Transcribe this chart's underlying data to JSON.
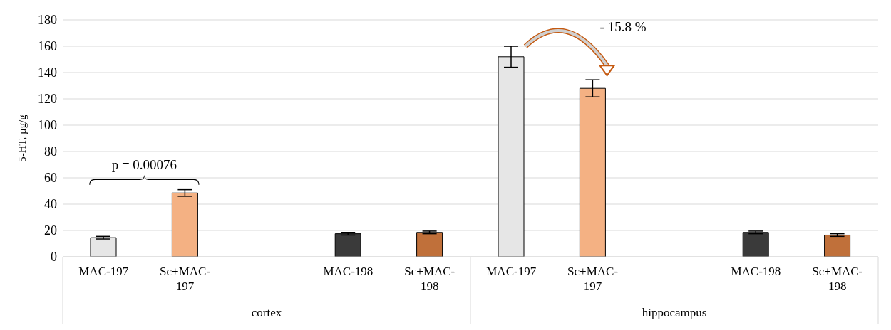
{
  "chart_data": {
    "type": "bar",
    "ylabel": "5-HT, µg/g",
    "categories": [
      "MAC-197",
      "Sc+MAC-197",
      null,
      "MAC-198",
      "Sc+MAC-198",
      "MAC-197",
      "Sc+MAC-197",
      null,
      "MAC-198",
      "Sc+MAC-198"
    ],
    "values": [
      14.5,
      48.5,
      null,
      17.5,
      18.5,
      152,
      128,
      null,
      18.5,
      16.5
    ],
    "errors": [
      1,
      2.5,
      null,
      1,
      1,
      8,
      6.5,
      null,
      1,
      1
    ],
    "colors": [
      "#e6e6e6",
      "#f4b183",
      null,
      "#3a3a3a",
      "#c0703a",
      "#e6e6e6",
      "#f4b183",
      null,
      "#3a3a3a",
      "#c0703a"
    ],
    "ylim": [
      0,
      180
    ],
    "yticks": [
      0,
      20,
      40,
      60,
      80,
      100,
      120,
      140,
      160,
      180
    ],
    "grid": "y",
    "annotations": [
      "cortex",
      "hippocampus",
      "p = 0.00076",
      "- 15.8 %"
    ]
  }
}
